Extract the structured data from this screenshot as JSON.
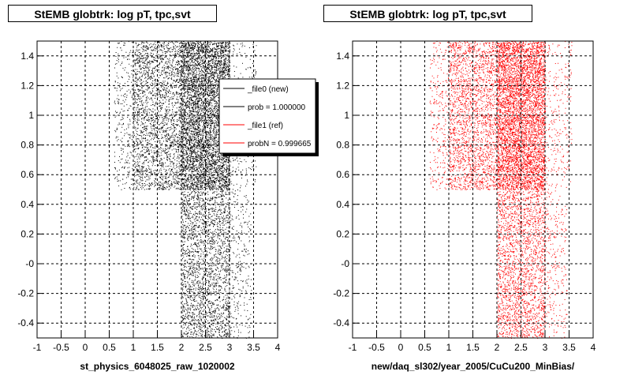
{
  "colors": {
    "background": "#ffffff",
    "file0": "#000000",
    "file1": "#ff0000",
    "grid": "#000000"
  },
  "footer": {
    "text": ""
  },
  "chart_data": [
    {
      "type": "scatter",
      "title": "StEMB globtrk: log pT, tpc,svt",
      "xlabel": "st_physics_6048025_raw_1020002",
      "ylabel": "",
      "xlim": [
        -1,
        4
      ],
      "ylim": [
        -0.5,
        1.5
      ],
      "x_ticks": [
        "-1",
        "-0.5",
        "0",
        "0.5",
        "1",
        "1.5",
        "2",
        "2.5",
        "3",
        "3.5",
        "4"
      ],
      "y_ticks": [
        "-0.4",
        "-0.2",
        "-0",
        "0.2",
        "0.4",
        "0.6",
        "0.8",
        "1",
        "1.2",
        "1.4"
      ],
      "grid": true,
      "series": [
        {
          "name": "_file0 (new)",
          "color": "#000000",
          "regions": [
            {
              "x": [
                1.0,
                2.0
              ],
              "y": [
                0.5,
                1.5
              ],
              "density": "medium"
            },
            {
              "x": [
                2.0,
                3.0
              ],
              "y": [
                0.5,
                1.5
              ],
              "density": "high"
            },
            {
              "x": [
                0.6,
                1.0
              ],
              "y": [
                0.5,
                1.5
              ],
              "density": "low"
            },
            {
              "x": [
                3.0,
                3.55
              ],
              "y": [
                0.5,
                1.5
              ],
              "density": "low"
            },
            {
              "x": [
                2.0,
                3.0
              ],
              "y": [
                -0.5,
                0.5
              ],
              "density": "medium"
            },
            {
              "x": [
                3.0,
                3.45
              ],
              "y": [
                -0.5,
                0.5
              ],
              "density": "low"
            }
          ]
        }
      ],
      "legend": {
        "position": "top-right",
        "entries": [
          {
            "label": "_file0 (new)",
            "color": "#000000"
          },
          {
            "label": "prob = 1.000000",
            "color": "#000000"
          },
          {
            "label": "_file1 (ref)",
            "color": "#ff0000"
          },
          {
            "label": "probN = 0.999665",
            "color": "#ff0000"
          }
        ]
      }
    },
    {
      "type": "scatter",
      "title": "StEMB globtrk: log pT, tpc,svt",
      "xlabel": "new/daq_sl302/year_2005/CuCu200_MinBias/",
      "ylabel": "",
      "xlim": [
        -1,
        4
      ],
      "ylim": [
        -0.5,
        1.5
      ],
      "x_ticks": [
        "-1",
        "-0.5",
        "0",
        "0.5",
        "1",
        "1.5",
        "2",
        "2.5",
        "3",
        "3.5",
        "4"
      ],
      "y_ticks": [
        "-0.4",
        "-0.2",
        "-0",
        "0.2",
        "0.4",
        "0.6",
        "0.8",
        "1",
        "1.2",
        "1.4"
      ],
      "grid": true,
      "series": [
        {
          "name": "_file1 (ref)",
          "color": "#ff0000",
          "regions": [
            {
              "x": [
                1.0,
                2.0
              ],
              "y": [
                0.5,
                1.5
              ],
              "density": "medium"
            },
            {
              "x": [
                2.0,
                3.0
              ],
              "y": [
                0.5,
                1.5
              ],
              "density": "high"
            },
            {
              "x": [
                0.6,
                1.0
              ],
              "y": [
                0.5,
                1.5
              ],
              "density": "low"
            },
            {
              "x": [
                3.0,
                3.55
              ],
              "y": [
                0.5,
                1.5
              ],
              "density": "low"
            },
            {
              "x": [
                2.0,
                3.0
              ],
              "y": [
                -0.5,
                0.5
              ],
              "density": "medium"
            },
            {
              "x": [
                3.0,
                3.45
              ],
              "y": [
                -0.5,
                0.5
              ],
              "density": "low"
            }
          ]
        }
      ]
    }
  ]
}
